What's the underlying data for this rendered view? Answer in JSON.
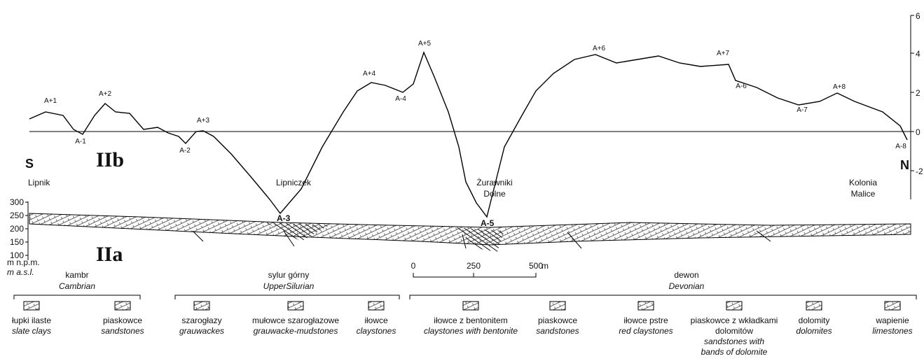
{
  "profile": {
    "side_left": "S",
    "side_right": "N",
    "section_label": "IIb",
    "axis_ticks": [
      "6",
      "4",
      "2",
      "0",
      "-2"
    ],
    "points": [
      "A+1",
      "A-1",
      "A+2",
      "A-2",
      "A+3",
      "A+4",
      "A-4",
      "A+5",
      "A+6",
      "A+7",
      "A-6",
      "A-7",
      "A+8",
      "A-8"
    ],
    "places": [
      "Lipnik",
      "Lipniczek",
      "Żurawniki",
      "Dolne",
      "Kolonia",
      "Malice"
    ]
  },
  "section": {
    "section_label": "IIa",
    "axis_ticks": [
      "300",
      "250",
      "200",
      "150",
      "100"
    ],
    "unit_pl": "m n.p.m.",
    "unit_en": "m a.s.l.",
    "markers": [
      "A-3",
      "A-5"
    ],
    "scale": [
      "0",
      "250",
      "500",
      "m"
    ]
  },
  "legend": {
    "groups": [
      {
        "pl": "kambr",
        "en": "Cambrian"
      },
      {
        "pl": "sylur górny",
        "en": "UpperSilurian"
      },
      {
        "pl": "dewon",
        "en": "Devonian"
      }
    ],
    "items": [
      {
        "pl": [
          "łupki ilaste"
        ],
        "en": [
          "slate clays"
        ]
      },
      {
        "pl": [
          "piaskowce"
        ],
        "en": [
          "sandstones"
        ]
      },
      {
        "pl": [
          "szarogłazy"
        ],
        "en": [
          "grauwackes"
        ]
      },
      {
        "pl": [
          "mułowce szarogłazowe"
        ],
        "en": [
          "grauwacke-mudstones"
        ]
      },
      {
        "pl": [
          "iłowce"
        ],
        "en": [
          "claystones"
        ]
      },
      {
        "pl": [
          "iłowce z bentonitem"
        ],
        "en": [
          "claystones with bentonite"
        ]
      },
      {
        "pl": [
          "piaskowce"
        ],
        "en": [
          "sandstones"
        ]
      },
      {
        "pl": [
          "iłowce pstre"
        ],
        "en": [
          "red claystones"
        ]
      },
      {
        "pl": [
          "piaskowce z wkładkami",
          "dolomitów"
        ],
        "en": [
          "sandstones with",
          "bands of dolomite"
        ]
      },
      {
        "pl": [
          "dolomity"
        ],
        "en": [
          "dolomites"
        ]
      },
      {
        "pl": [
          "wapienie"
        ],
        "en": [
          "limestones"
        ]
      }
    ]
  }
}
